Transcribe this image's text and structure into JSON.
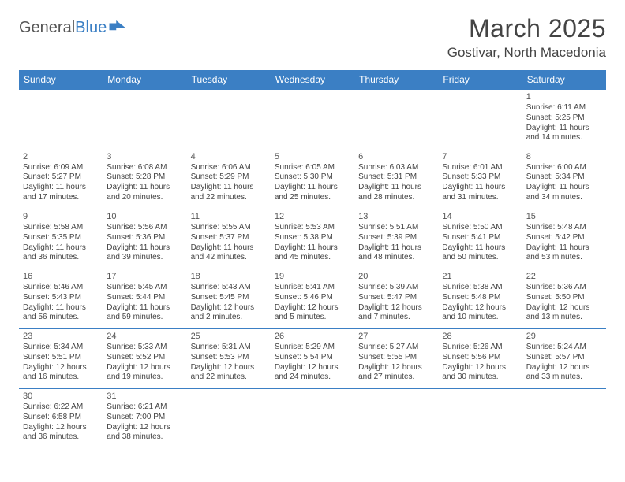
{
  "logo": {
    "textA": "General",
    "textB": "Blue",
    "flagColor": "#3b7fc4"
  },
  "title": "March 2025",
  "location": "Gostivar, North Macedonia",
  "columns": [
    "Sunday",
    "Monday",
    "Tuesday",
    "Wednesday",
    "Thursday",
    "Friday",
    "Saturday"
  ],
  "colors": {
    "headerBg": "#3b7fc4",
    "headerText": "#ffffff",
    "cellBorder": "#3b7fc4",
    "textColor": "#444444",
    "background": "#ffffff"
  },
  "weeks": [
    [
      null,
      null,
      null,
      null,
      null,
      null,
      {
        "n": "1",
        "sr": "6:11 AM",
        "ss": "5:25 PM",
        "dl": "11 hours and 14 minutes."
      }
    ],
    [
      {
        "n": "2",
        "sr": "6:09 AM",
        "ss": "5:27 PM",
        "dl": "11 hours and 17 minutes."
      },
      {
        "n": "3",
        "sr": "6:08 AM",
        "ss": "5:28 PM",
        "dl": "11 hours and 20 minutes."
      },
      {
        "n": "4",
        "sr": "6:06 AM",
        "ss": "5:29 PM",
        "dl": "11 hours and 22 minutes."
      },
      {
        "n": "5",
        "sr": "6:05 AM",
        "ss": "5:30 PM",
        "dl": "11 hours and 25 minutes."
      },
      {
        "n": "6",
        "sr": "6:03 AM",
        "ss": "5:31 PM",
        "dl": "11 hours and 28 minutes."
      },
      {
        "n": "7",
        "sr": "6:01 AM",
        "ss": "5:33 PM",
        "dl": "11 hours and 31 minutes."
      },
      {
        "n": "8",
        "sr": "6:00 AM",
        "ss": "5:34 PM",
        "dl": "11 hours and 34 minutes."
      }
    ],
    [
      {
        "n": "9",
        "sr": "5:58 AM",
        "ss": "5:35 PM",
        "dl": "11 hours and 36 minutes."
      },
      {
        "n": "10",
        "sr": "5:56 AM",
        "ss": "5:36 PM",
        "dl": "11 hours and 39 minutes."
      },
      {
        "n": "11",
        "sr": "5:55 AM",
        "ss": "5:37 PM",
        "dl": "11 hours and 42 minutes."
      },
      {
        "n": "12",
        "sr": "5:53 AM",
        "ss": "5:38 PM",
        "dl": "11 hours and 45 minutes."
      },
      {
        "n": "13",
        "sr": "5:51 AM",
        "ss": "5:39 PM",
        "dl": "11 hours and 48 minutes."
      },
      {
        "n": "14",
        "sr": "5:50 AM",
        "ss": "5:41 PM",
        "dl": "11 hours and 50 minutes."
      },
      {
        "n": "15",
        "sr": "5:48 AM",
        "ss": "5:42 PM",
        "dl": "11 hours and 53 minutes."
      }
    ],
    [
      {
        "n": "16",
        "sr": "5:46 AM",
        "ss": "5:43 PM",
        "dl": "11 hours and 56 minutes."
      },
      {
        "n": "17",
        "sr": "5:45 AM",
        "ss": "5:44 PM",
        "dl": "11 hours and 59 minutes."
      },
      {
        "n": "18",
        "sr": "5:43 AM",
        "ss": "5:45 PM",
        "dl": "12 hours and 2 minutes."
      },
      {
        "n": "19",
        "sr": "5:41 AM",
        "ss": "5:46 PM",
        "dl": "12 hours and 5 minutes."
      },
      {
        "n": "20",
        "sr": "5:39 AM",
        "ss": "5:47 PM",
        "dl": "12 hours and 7 minutes."
      },
      {
        "n": "21",
        "sr": "5:38 AM",
        "ss": "5:48 PM",
        "dl": "12 hours and 10 minutes."
      },
      {
        "n": "22",
        "sr": "5:36 AM",
        "ss": "5:50 PM",
        "dl": "12 hours and 13 minutes."
      }
    ],
    [
      {
        "n": "23",
        "sr": "5:34 AM",
        "ss": "5:51 PM",
        "dl": "12 hours and 16 minutes."
      },
      {
        "n": "24",
        "sr": "5:33 AM",
        "ss": "5:52 PM",
        "dl": "12 hours and 19 minutes."
      },
      {
        "n": "25",
        "sr": "5:31 AM",
        "ss": "5:53 PM",
        "dl": "12 hours and 22 minutes."
      },
      {
        "n": "26",
        "sr": "5:29 AM",
        "ss": "5:54 PM",
        "dl": "12 hours and 24 minutes."
      },
      {
        "n": "27",
        "sr": "5:27 AM",
        "ss": "5:55 PM",
        "dl": "12 hours and 27 minutes."
      },
      {
        "n": "28",
        "sr": "5:26 AM",
        "ss": "5:56 PM",
        "dl": "12 hours and 30 minutes."
      },
      {
        "n": "29",
        "sr": "5:24 AM",
        "ss": "5:57 PM",
        "dl": "12 hours and 33 minutes."
      }
    ],
    [
      {
        "n": "30",
        "sr": "6:22 AM",
        "ss": "6:58 PM",
        "dl": "12 hours and 36 minutes."
      },
      {
        "n": "31",
        "sr": "6:21 AM",
        "ss": "7:00 PM",
        "dl": "12 hours and 38 minutes."
      },
      null,
      null,
      null,
      null,
      null
    ]
  ],
  "labels": {
    "sunrise": "Sunrise:",
    "sunset": "Sunset:",
    "daylight": "Daylight:"
  }
}
